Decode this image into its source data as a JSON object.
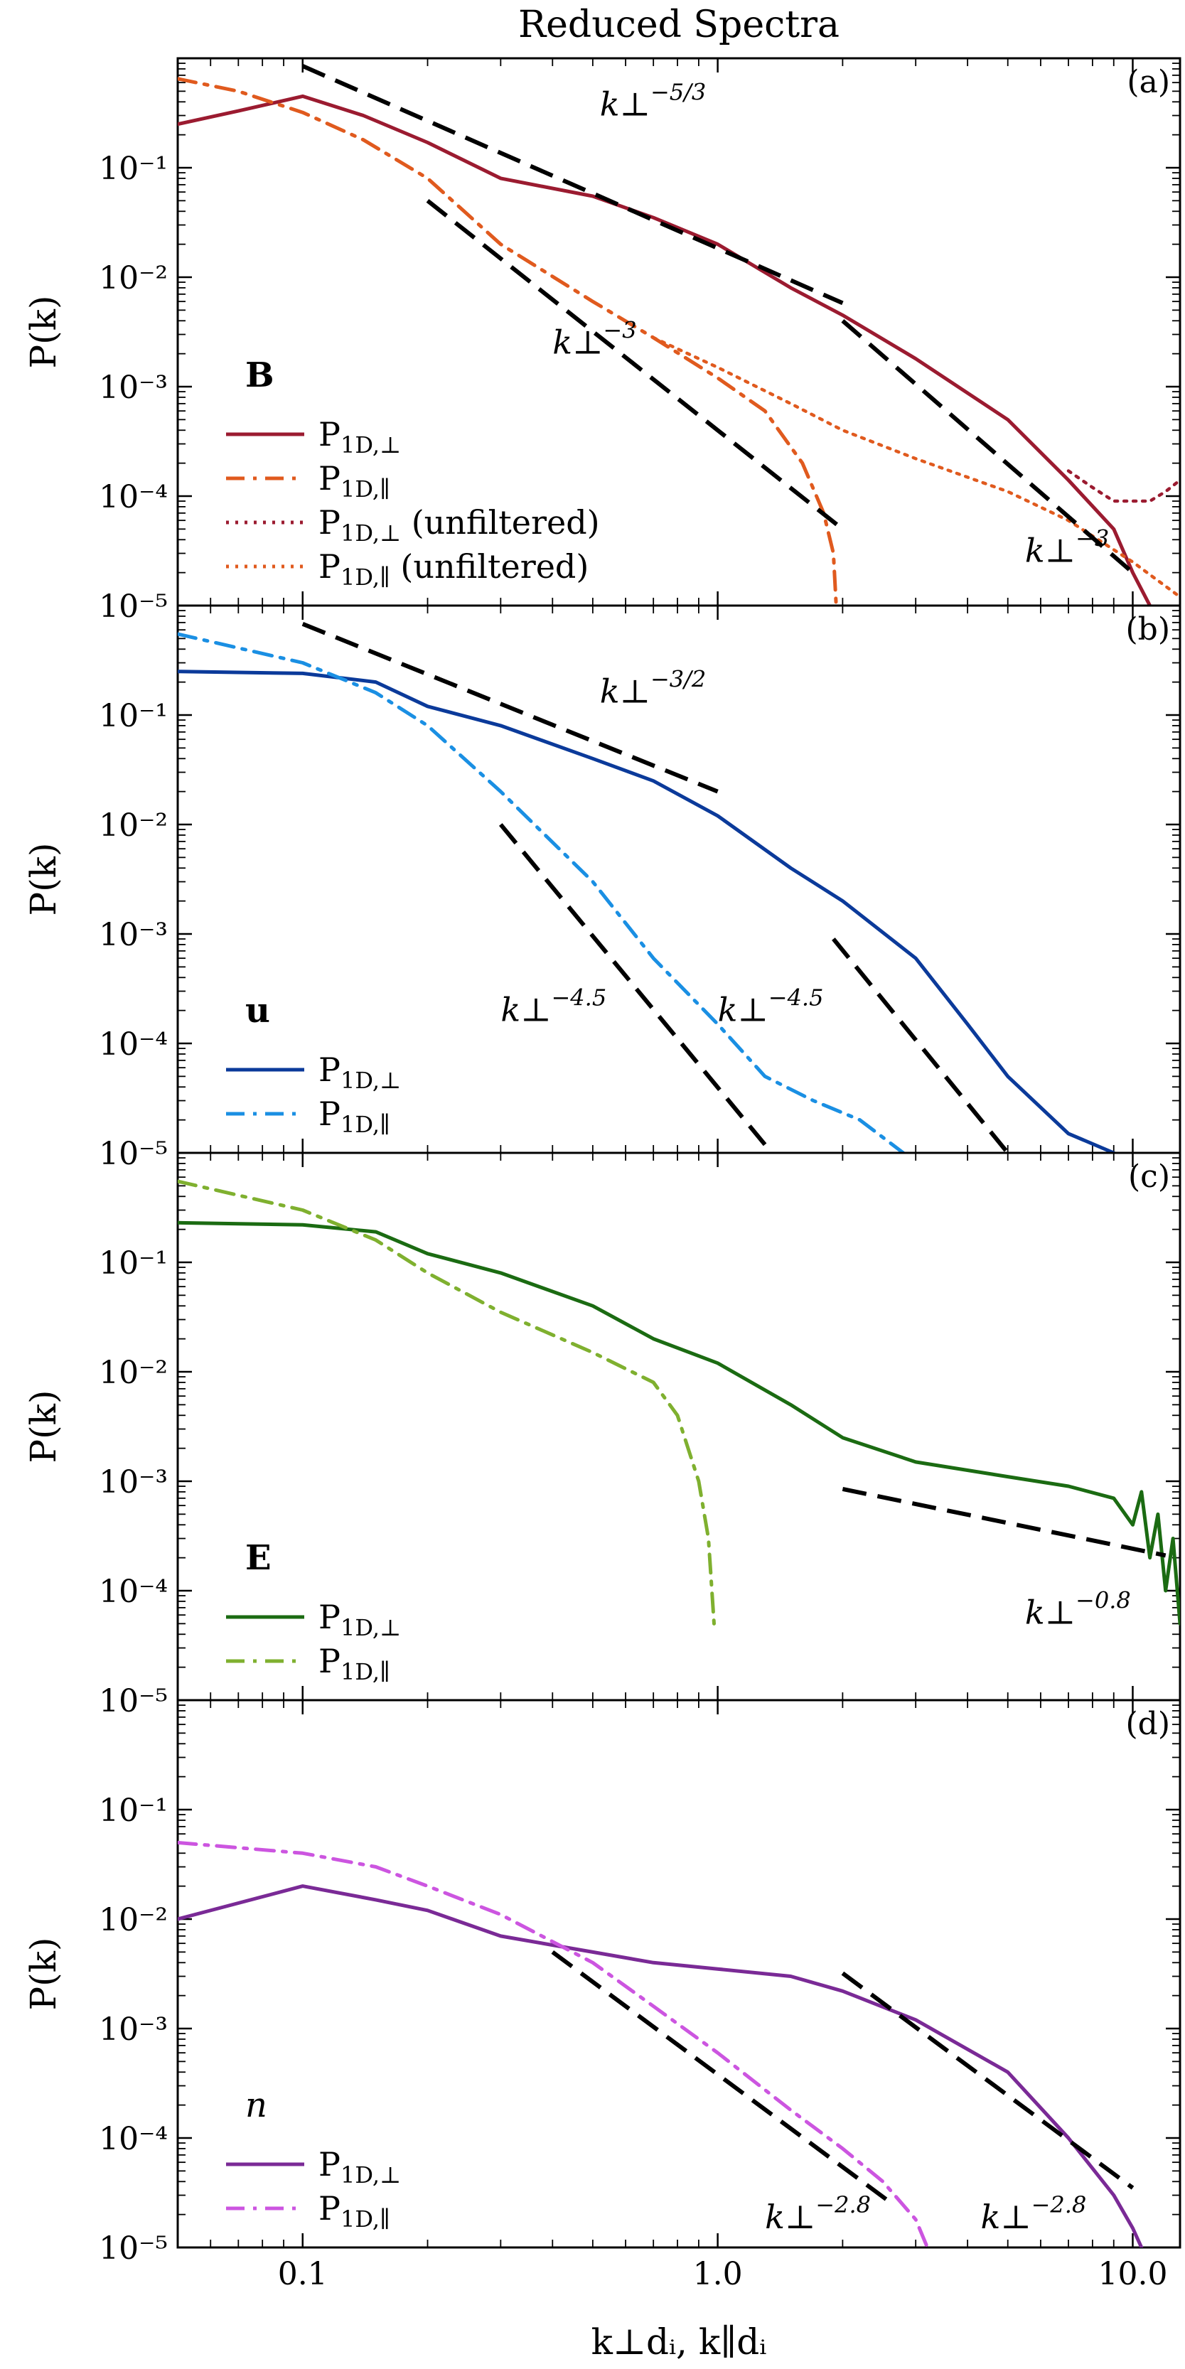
{
  "title": "Reduced Spectra",
  "xlabel": "k⊥dᵢ, k∥dᵢ",
  "ylabel": "P(k)",
  "x_ticks": [
    {
      "value": 0.1,
      "label": "0.1"
    },
    {
      "value": 1.0,
      "label": "1.0"
    },
    {
      "value": 10.0,
      "label": "10.0"
    }
  ],
  "y_ticks": [
    {
      "value": 0.1,
      "label": "10⁻¹"
    },
    {
      "value": 0.01,
      "label": "10⁻²"
    },
    {
      "value": 0.001,
      "label": "10⁻³"
    },
    {
      "value": 0.0001,
      "label": "10⁻⁴"
    },
    {
      "value": 1e-05,
      "label": "10⁻⁵"
    }
  ],
  "colors": {
    "B_perp": "#9b1b30",
    "B_par": "#e05a1e",
    "u_perp": "#0b3a9a",
    "u_par": "#1a8fe3",
    "E_perp": "#1b6b12",
    "E_par": "#7fb02f",
    "n_perp": "#7a2a96",
    "n_par": "#cc55e0",
    "fit": "#000000"
  },
  "chart_data": [
    {
      "type": "line",
      "panel": "(a)",
      "field": "B",
      "field_style": "bold",
      "xlim": [
        0.05,
        13
      ],
      "ylim": [
        1e-05,
        1
      ],
      "xscale": "log",
      "yscale": "log",
      "series": [
        {
          "name": "P1D,⊥",
          "sub": "1D,⊥",
          "suffix": "",
          "color_key": "B_perp",
          "dash": "solid",
          "x": [
            0.05,
            0.07,
            0.1,
            0.14,
            0.2,
            0.3,
            0.5,
            0.7,
            1.0,
            1.5,
            2,
            3,
            5,
            7,
            9,
            10,
            11
          ],
          "y": [
            0.25,
            0.33,
            0.45,
            0.3,
            0.17,
            0.08,
            0.055,
            0.035,
            0.02,
            0.008,
            0.0045,
            0.0018,
            0.0005,
            0.00014,
            5e-05,
            2e-05,
            1e-05
          ]
        },
        {
          "name": "P1D,∥",
          "sub": "1D,∥",
          "suffix": "",
          "color_key": "B_par",
          "dash": "dashdot",
          "x": [
            0.05,
            0.07,
            0.1,
            0.14,
            0.2,
            0.3,
            0.5,
            0.7,
            1.0,
            1.3,
            1.6,
            1.8,
            1.9,
            1.93
          ],
          "y": [
            0.65,
            0.5,
            0.32,
            0.18,
            0.08,
            0.02,
            0.006,
            0.0028,
            0.0012,
            0.0006,
            0.0002,
            7e-05,
            3e-05,
            1e-05
          ]
        },
        {
          "name": "P1D,⊥ (unfiltered)",
          "sub": "1D,⊥",
          "suffix": " (unfiltered)",
          "color_key": "B_perp",
          "dash": "dotted",
          "x": [
            7,
            8,
            9,
            10,
            11,
            12,
            13
          ],
          "y": [
            0.00017,
            0.00012,
            9e-05,
            9e-05,
            9e-05,
            0.00011,
            0.00014
          ]
        },
        {
          "name": "P1D,∥ (unfiltered)",
          "sub": "1D,∥",
          "suffix": " (unfiltered)",
          "color_key": "B_par",
          "dash": "dotted",
          "x": [
            0.7,
            1.0,
            1.5,
            2,
            3,
            5,
            7,
            10,
            13
          ],
          "y": [
            0.0028,
            0.0015,
            0.0007,
            0.0004,
            0.00022,
            0.00011,
            6e-05,
            2.5e-05,
            1.2e-05
          ]
        }
      ],
      "fits": [
        {
          "label": "k⊥",
          "exponent": "−5/3",
          "x": [
            0.1,
            2.0
          ],
          "y": [
            0.85,
            0.0058
          ],
          "label_at": [
            0.52,
            0.3
          ]
        },
        {
          "label": "k⊥",
          "exponent": "−3",
          "x": [
            0.2,
            2.0
          ],
          "y": [
            0.05,
            5e-05
          ],
          "label_at": [
            0.4,
            0.002
          ]
        },
        {
          "label": "k⊥",
          "exponent": "−3",
          "x": [
            2.0,
            10.0
          ],
          "y": [
            0.004,
            2e-05
          ],
          "label_at": [
            5.5,
            2.5e-05
          ]
        }
      ]
    },
    {
      "type": "line",
      "panel": "(b)",
      "field": "u",
      "field_style": "bold",
      "xlim": [
        0.05,
        13
      ],
      "ylim": [
        1e-05,
        1
      ],
      "xscale": "log",
      "yscale": "log",
      "series": [
        {
          "name": "P1D,⊥",
          "sub": "1D,⊥",
          "suffix": "",
          "color_key": "u_perp",
          "dash": "solid",
          "x": [
            0.05,
            0.1,
            0.15,
            0.2,
            0.3,
            0.5,
            0.7,
            1.0,
            1.5,
            2,
            3,
            4,
            5,
            7,
            9
          ],
          "y": [
            0.25,
            0.24,
            0.2,
            0.12,
            0.08,
            0.04,
            0.025,
            0.012,
            0.004,
            0.002,
            0.0006,
            0.00015,
            5e-05,
            1.5e-05,
            1e-05
          ]
        },
        {
          "name": "P1D,∥",
          "sub": "1D,∥",
          "suffix": "",
          "color_key": "u_par",
          "dash": "dashdot",
          "x": [
            0.05,
            0.1,
            0.15,
            0.2,
            0.3,
            0.5,
            0.7,
            1.0,
            1.3,
            1.7,
            2.2,
            2.8
          ],
          "y": [
            0.55,
            0.3,
            0.16,
            0.08,
            0.02,
            0.003,
            0.0006,
            0.00015,
            5e-05,
            3e-05,
            2e-05,
            1e-05
          ]
        }
      ],
      "fits": [
        {
          "label": "k⊥",
          "exponent": "−3/2",
          "x": [
            0.1,
            1.0
          ],
          "y": [
            0.68,
            0.02
          ],
          "label_at": [
            0.52,
            0.13
          ]
        },
        {
          "label": "k⊥",
          "exponent": "−4.5",
          "x": [
            0.3,
            1.35
          ],
          "y": [
            0.01,
            1e-05
          ],
          "label_at": [
            0.3,
            0.00016
          ]
        },
        {
          "label": "k⊥",
          "exponent": "−4.5",
          "x": [
            1.9,
            5.0
          ],
          "y": [
            0.0009,
            1e-05
          ],
          "label_at": [
            1.0,
            0.00016
          ]
        }
      ]
    },
    {
      "type": "line",
      "panel": "(c)",
      "field": "E",
      "field_style": "bold",
      "xlim": [
        0.05,
        13
      ],
      "ylim": [
        1e-05,
        1
      ],
      "xscale": "log",
      "yscale": "log",
      "series": [
        {
          "name": "P1D,⊥",
          "sub": "1D,⊥",
          "suffix": "",
          "color_key": "E_perp",
          "dash": "solid",
          "x": [
            0.05,
            0.1,
            0.15,
            0.2,
            0.3,
            0.5,
            0.7,
            1.0,
            1.5,
            2,
            3,
            5,
            7,
            9,
            10,
            10.5,
            11,
            11.5,
            12,
            12.5,
            13
          ],
          "y": [
            0.23,
            0.22,
            0.19,
            0.12,
            0.08,
            0.04,
            0.02,
            0.012,
            0.005,
            0.0025,
            0.0015,
            0.0011,
            0.0009,
            0.0007,
            0.0004,
            0.0008,
            0.0002,
            0.0005,
            0.0001,
            0.0003,
            5e-05
          ]
        },
        {
          "name": "P1D,∥",
          "sub": "1D,∥",
          "suffix": "",
          "color_key": "E_par",
          "dash": "dashdot",
          "x": [
            0.05,
            0.1,
            0.15,
            0.2,
            0.3,
            0.5,
            0.7,
            0.8,
            0.9,
            0.95,
            0.98
          ],
          "y": [
            0.55,
            0.3,
            0.16,
            0.08,
            0.035,
            0.015,
            0.008,
            0.004,
            0.001,
            0.0003,
            5e-05
          ]
        }
      ],
      "fits": [
        {
          "label": "k⊥",
          "exponent": "−0.8",
          "x": [
            2.0,
            12.0
          ],
          "y": [
            0.00085,
            0.00021
          ],
          "label_at": [
            5.5,
            5e-05
          ]
        }
      ]
    },
    {
      "type": "line",
      "panel": "(d)",
      "field": "n",
      "field_style": "italic",
      "xlim": [
        0.05,
        13
      ],
      "ylim": [
        1e-05,
        1
      ],
      "xscale": "log",
      "yscale": "log",
      "series": [
        {
          "name": "P1D,⊥",
          "sub": "1D,⊥",
          "suffix": "",
          "color_key": "n_perp",
          "dash": "solid",
          "x": [
            0.05,
            0.07,
            0.1,
            0.15,
            0.2,
            0.3,
            0.5,
            0.7,
            1.0,
            1.5,
            2,
            3,
            5,
            7,
            9,
            10,
            10.5
          ],
          "y": [
            0.01,
            0.014,
            0.02,
            0.015,
            0.012,
            0.007,
            0.005,
            0.004,
            0.0035,
            0.003,
            0.0022,
            0.0012,
            0.0004,
            0.0001,
            3e-05,
            1.5e-05,
            1e-05
          ]
        },
        {
          "name": "P1D,∥",
          "sub": "1D,∥",
          "suffix": "",
          "color_key": "n_par",
          "dash": "dashdot",
          "x": [
            0.05,
            0.1,
            0.15,
            0.2,
            0.3,
            0.5,
            0.7,
            1.0,
            1.5,
            2,
            2.5,
            3.0,
            3.2
          ],
          "y": [
            0.05,
            0.04,
            0.03,
            0.02,
            0.011,
            0.004,
            0.0016,
            0.0006,
            0.00018,
            8e-05,
            4e-05,
            1.8e-05,
            1e-05
          ]
        }
      ],
      "fits": [
        {
          "label": "k⊥",
          "exponent": "−2.8",
          "x": [
            0.4,
            2.6
          ],
          "y": [
            0.005,
            2.6e-05
          ],
          "label_at": [
            1.3,
            1.5e-05
          ]
        },
        {
          "label": "k⊥",
          "exponent": "−2.8",
          "x": [
            2.0,
            10.0
          ],
          "y": [
            0.0032,
            3.5e-05
          ],
          "label_at": [
            4.3,
            1.5e-05
          ]
        }
      ]
    }
  ]
}
